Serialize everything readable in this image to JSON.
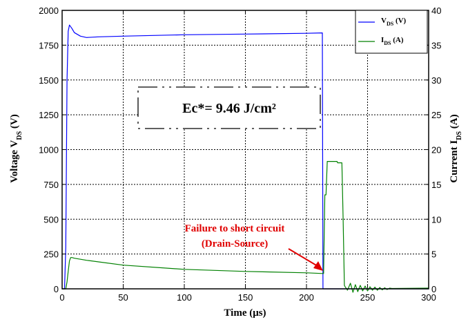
{
  "chart_data": {
    "type": "line",
    "x": {
      "label": "Time (μs)",
      "range": [
        0,
        300
      ],
      "ticks": [
        "0",
        "50",
        "100",
        "150",
        "200",
        "250",
        "300"
      ]
    },
    "y_left": {
      "label_main": "Voltage V",
      "label_sub": "DS",
      "label_unit": " (V)",
      "range": [
        0,
        2000
      ],
      "ticks": [
        "0",
        "250",
        "500",
        "750",
        "1000",
        "1250",
        "1500",
        "1750",
        "2000"
      ]
    },
    "y_right": {
      "label_main": "Current I",
      "label_sub": "DS",
      "label_unit": " (A)",
      "range": [
        0,
        40
      ],
      "ticks": [
        "0",
        "5",
        "10",
        "15",
        "20",
        "25",
        "30",
        "35",
        "40"
      ]
    },
    "grid": true,
    "legend_position": "top-right",
    "series": [
      {
        "name_main": "V",
        "name_sub": "DS",
        "name_unit": " (V)",
        "axis": "left",
        "color": "#0000ff",
        "x": [
          0,
          2,
          3,
          4,
          5,
          6,
          8,
          10,
          15,
          20,
          30,
          50,
          100,
          150,
          200,
          213,
          213.5,
          300
        ],
        "y": [
          0,
          0,
          300,
          1500,
          1850,
          1895,
          1870,
          1840,
          1815,
          1805,
          1810,
          1815,
          1825,
          1830,
          1835,
          1838,
          0,
          0
        ]
      },
      {
        "name_main": "I",
        "name_sub": "DS",
        "name_unit": " (A)",
        "axis": "right",
        "color": "#008000",
        "x": [
          0,
          3,
          4,
          5,
          6,
          7,
          8,
          10,
          20,
          50,
          100,
          150,
          200,
          213,
          214,
          215,
          216,
          217,
          218,
          219,
          220,
          224,
          225,
          225.5,
          229,
          230,
          231,
          232,
          233,
          233.5,
          234,
          236,
          238,
          240,
          242,
          244,
          246,
          248,
          250,
          252,
          254,
          256,
          258,
          260,
          262,
          264,
          266,
          268,
          270,
          300
        ],
        "y": [
          0,
          0,
          1.0,
          2.5,
          4.0,
          4.5,
          4.5,
          4.4,
          4.1,
          3.4,
          2.8,
          2.5,
          2.3,
          2.2,
          2.2,
          13.5,
          13.5,
          18.3,
          18.3,
          18.3,
          18.3,
          18.3,
          18.3,
          18.1,
          18.1,
          10.0,
          0.5,
          0.2,
          0.0,
          -0.2,
          0.0,
          0.8,
          -0.5,
          0.6,
          -0.4,
          0.5,
          -0.3,
          0.4,
          -0.3,
          0.3,
          -0.2,
          0.25,
          -0.2,
          0.2,
          -0.15,
          0.15,
          -0.1,
          0.1,
          0.05,
          0.1
        ]
      }
    ],
    "annotations": {
      "energy_box": "Ec*= 9.46 J/cm²",
      "failure_line1": "Failure to short circuit",
      "failure_line2": "(Drain-Source)"
    }
  }
}
